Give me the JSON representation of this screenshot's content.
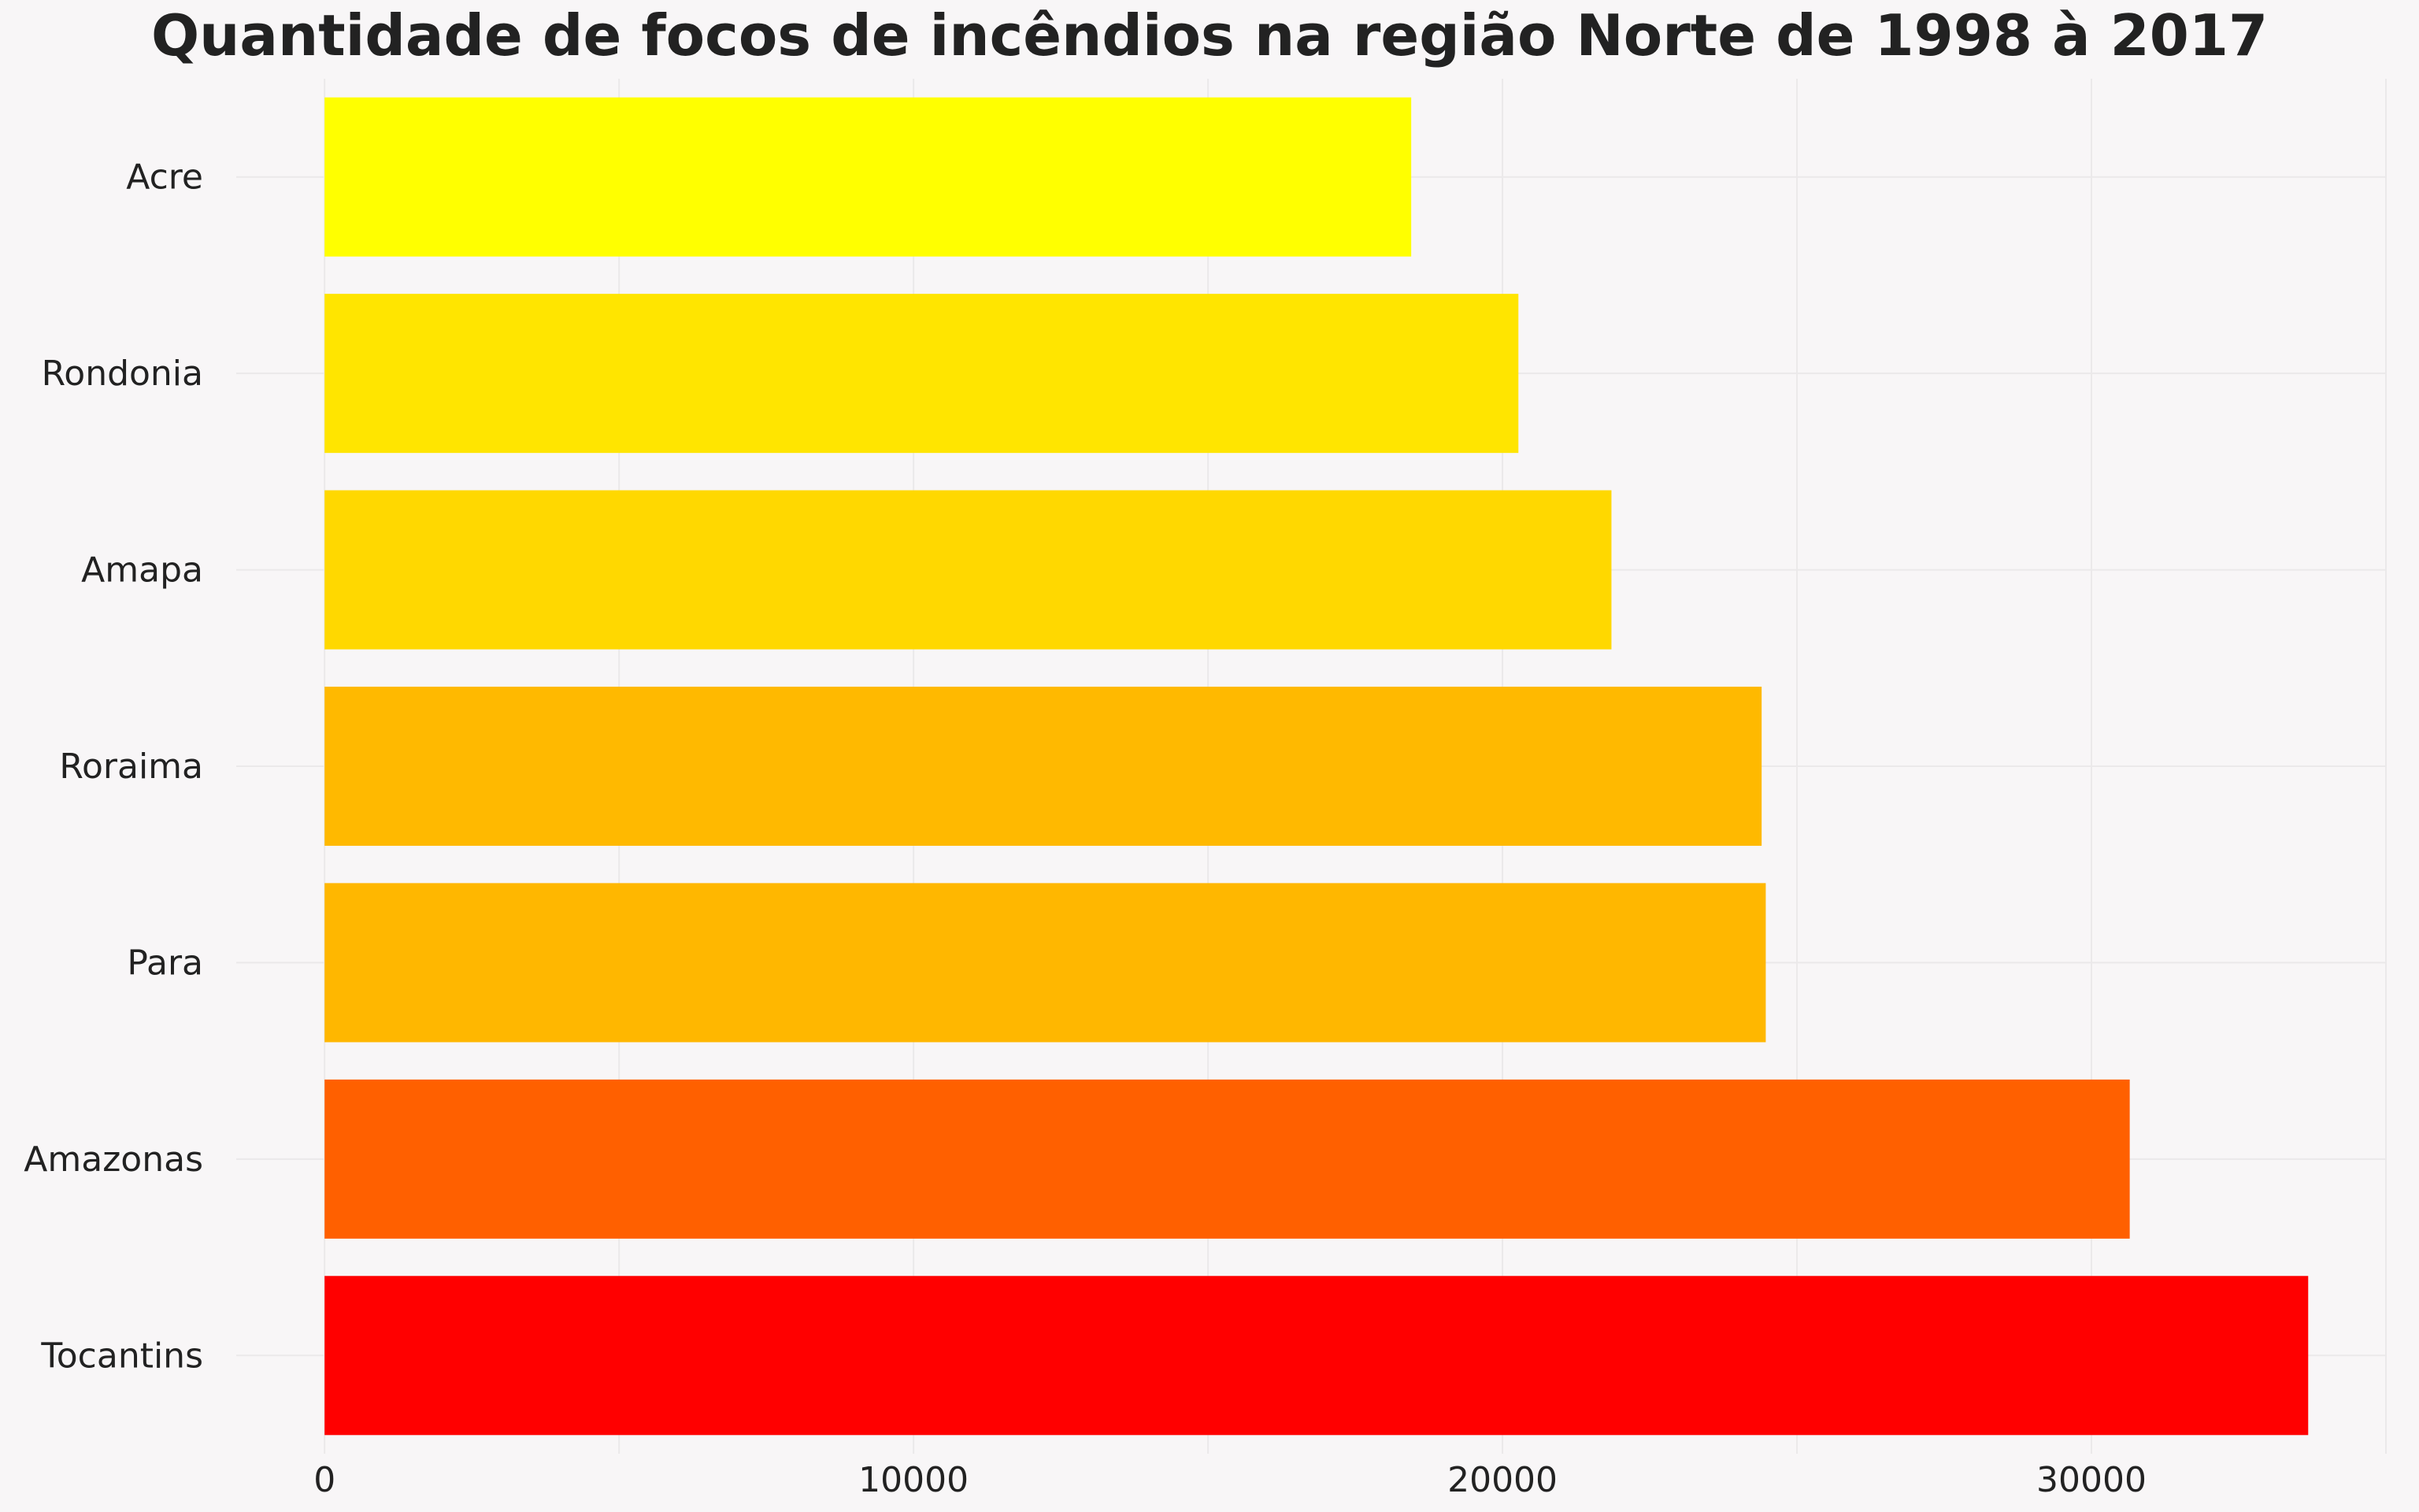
{
  "chart_data": {
    "type": "bar",
    "orientation": "horizontal",
    "title": "Quantidade de focos de incêndios na região Norte de 1998 à 2017",
    "xlabel": "",
    "ylabel": "",
    "categories": [
      "Acre",
      "Rondonia",
      "Amapa",
      "Roraima",
      "Para",
      "Amazonas",
      "Tocantins"
    ],
    "values": [
      18450,
      20270,
      21850,
      24400,
      24470,
      30650,
      33680
    ],
    "colors": [
      "#ffff00",
      "#ffe500",
      "#ffd800",
      "#ffb900",
      "#ffb700",
      "#ff6000",
      "#ff0000"
    ],
    "xlim": [
      -1500,
      35000
    ],
    "xticks": [
      0,
      10000,
      20000,
      30000
    ],
    "xtick_labels": [
      "0",
      "10000",
      "20000",
      "30000"
    ],
    "grid": true,
    "legend": "none"
  }
}
